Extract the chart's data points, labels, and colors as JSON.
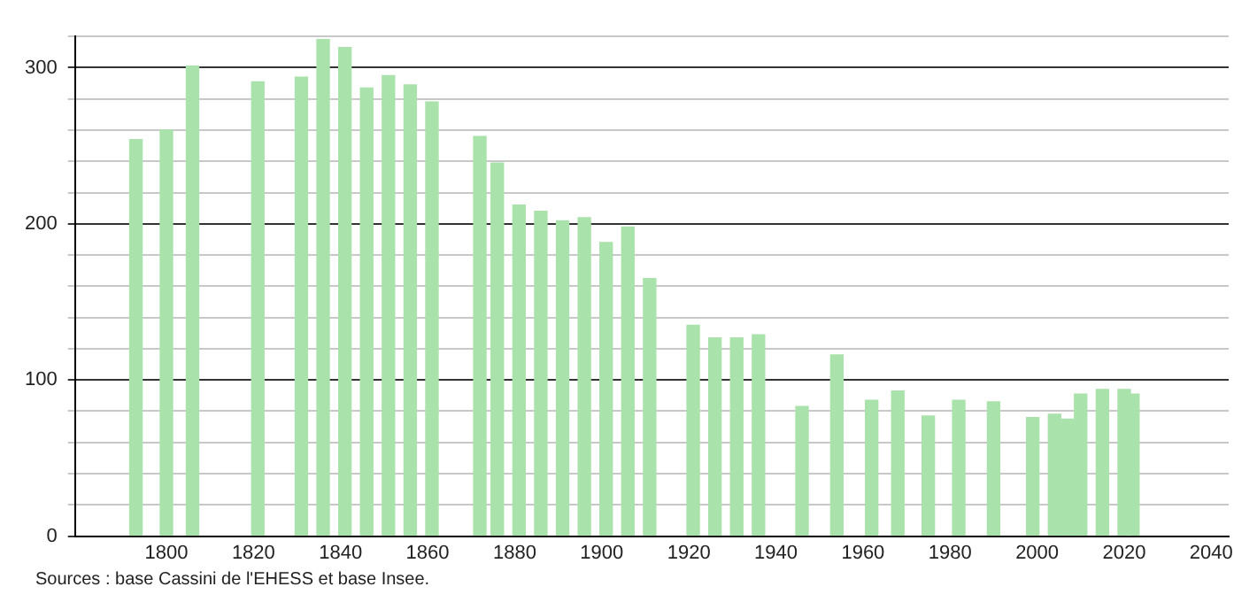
{
  "chart_data": {
    "type": "bar",
    "color": "#a9e2aa",
    "x": [
      1793,
      1800,
      1806,
      1821,
      1831,
      1836,
      1841,
      1846,
      1851,
      1856,
      1861,
      1872,
      1876,
      1881,
      1886,
      1891,
      1896,
      1901,
      1906,
      1911,
      1921,
      1926,
      1931,
      1936,
      1946,
      1954,
      1962,
      1968,
      1975,
      1982,
      1990,
      1999,
      2004,
      2007,
      2010,
      2015,
      2020,
      2022
    ],
    "values": [
      254,
      260,
      301,
      291,
      294,
      318,
      313,
      287,
      295,
      289,
      278,
      256,
      239,
      212,
      208,
      202,
      204,
      188,
      198,
      165,
      135,
      127,
      127,
      129,
      83,
      116,
      87,
      93,
      77,
      87,
      86,
      76,
      78,
      75,
      91,
      94,
      94,
      91
    ],
    "xlim": [
      1779,
      2044
    ],
    "xticks": [
      1800,
      1820,
      1840,
      1860,
      1880,
      1900,
      1920,
      1940,
      1960,
      1980,
      2000,
      2020,
      2040
    ],
    "ylim": [
      0,
      320
    ],
    "yticks": [
      0,
      {
        "value": 20,
        "label": null
      },
      {
        "value": 40,
        "label": null
      },
      {
        "value": 60,
        "label": null
      },
      {
        "value": 80,
        "label": null
      },
      100,
      {
        "value": 120,
        "label": null
      },
      {
        "value": 140,
        "label": null
      },
      {
        "value": 160,
        "label": null
      },
      {
        "value": 180,
        "label": null
      },
      200,
      {
        "value": 220,
        "label": null
      },
      {
        "value": 240,
        "label": null
      },
      {
        "value": 260,
        "label": null
      },
      {
        "value": 280,
        "label": null
      },
      300,
      {
        "value": 320,
        "label": null
      }
    ],
    "grid": "y",
    "annotations": [
      "Sources : base Cassini de l'EHESS et base Insee."
    ]
  }
}
